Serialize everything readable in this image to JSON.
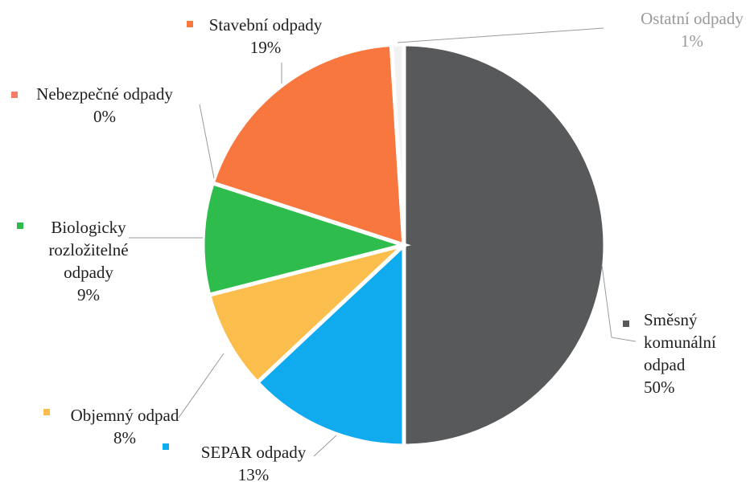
{
  "chart_data": {
    "type": "pie",
    "title": "",
    "slices": [
      {
        "name": "Směsný komunální odpad",
        "value": 50,
        "label_lines": [
          "Směsný",
          "komunální",
          "odpad"
        ],
        "pct": "50%",
        "color": "#57595b"
      },
      {
        "name": "SEPAR odpady",
        "value": 13,
        "label_lines": [
          "SEPAR odpady"
        ],
        "pct": "13%",
        "color": "#10aaee"
      },
      {
        "name": "Objemný odpad",
        "value": 8,
        "label_lines": [
          "Objemný odpad"
        ],
        "pct": "8%",
        "color": "#fbbd4b"
      },
      {
        "name": "Biologicky rozložitelné odpady",
        "value": 9,
        "label_lines": [
          "Biologicky",
          "rozložitelné",
          "odpady"
        ],
        "pct": "9%",
        "color": "#2ebd4c"
      },
      {
        "name": "Nebezpečné odpady",
        "value": 0,
        "label_lines": [
          "Nebezpečné odpady"
        ],
        "pct": "0%",
        "color": "#f47c62"
      },
      {
        "name": "Stavební odpady",
        "value": 19,
        "label_lines": [
          "Stavební odpady"
        ],
        "pct": "19%",
        "color": "#f7773f"
      },
      {
        "name": "Ostatní odpady",
        "value": 1,
        "label_lines": [
          "Ostatní odpady"
        ],
        "pct": "1%",
        "color": "#f2f2f2"
      }
    ],
    "legend": "inline"
  }
}
